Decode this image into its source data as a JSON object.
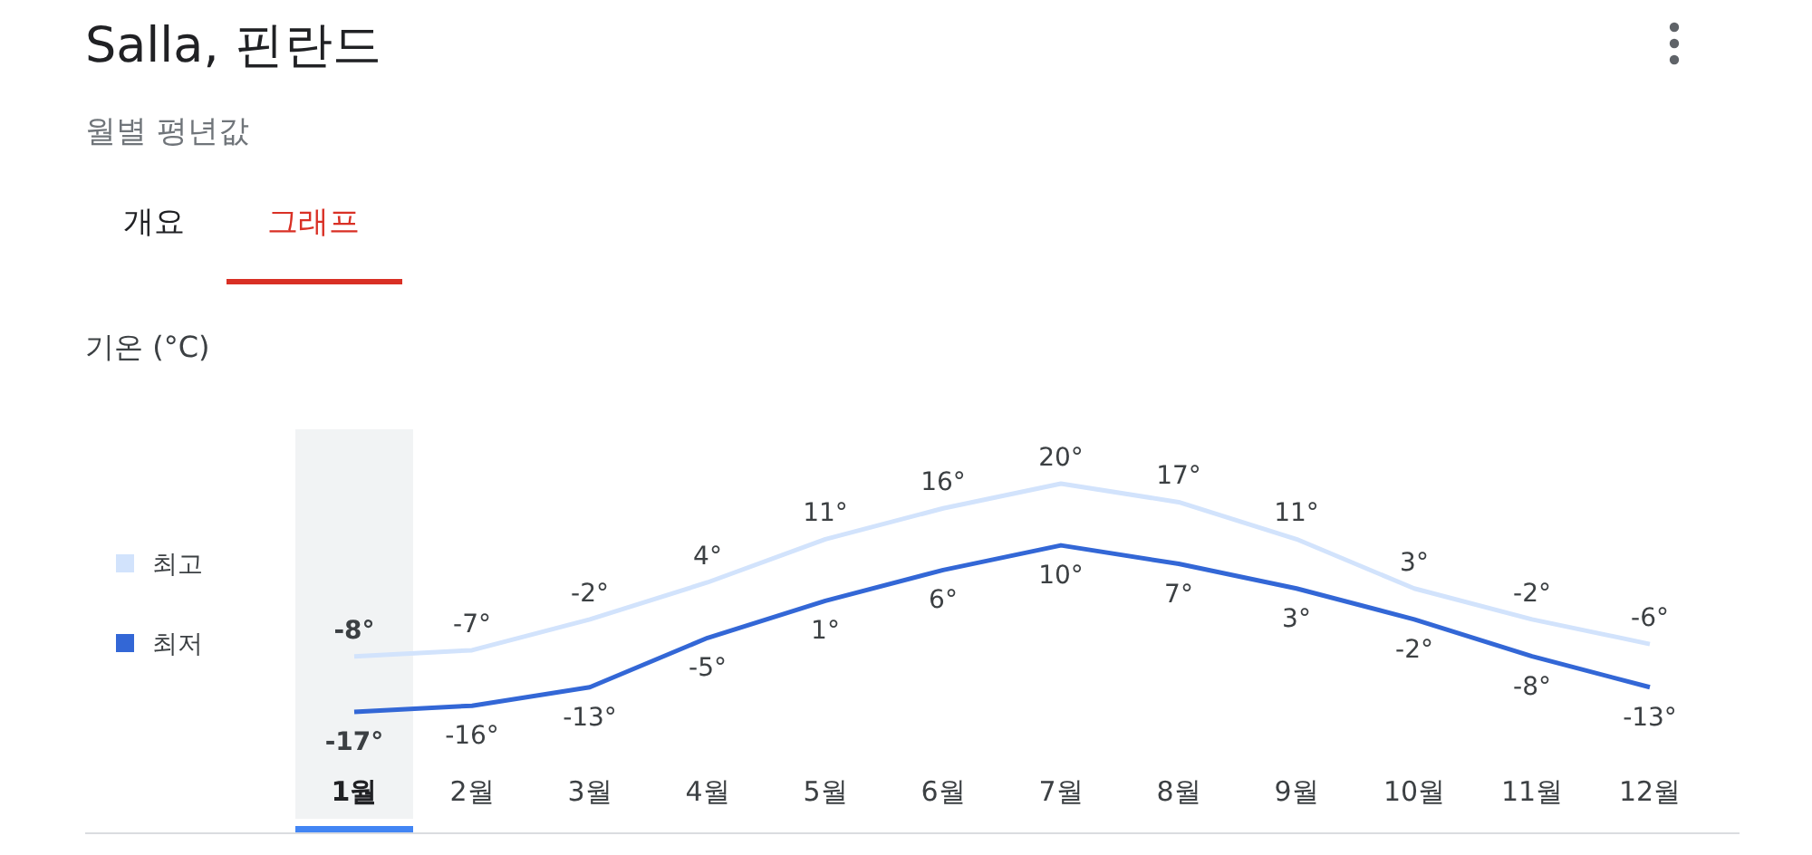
{
  "chart_data": {
    "type": "line",
    "title": "Salla, 핀란드",
    "subtitle": "월별 평년값",
    "annotations": [
      "개요",
      "그래프",
      "기온 (°C)"
    ],
    "categories": [
      "1월",
      "2월",
      "3월",
      "4월",
      "5월",
      "6월",
      "7월",
      "8월",
      "9월",
      "10월",
      "11월",
      "12월"
    ],
    "series": [
      {
        "name": "최고",
        "color": "#d2e3fc",
        "values": [
          -8,
          -7,
          -2,
          4,
          11,
          16,
          20,
          17,
          11,
          3,
          -2,
          -6
        ],
        "value_labels": [
          "-8°",
          "-7°",
          "-2°",
          "4°",
          "11°",
          "16°",
          "20°",
          "17°",
          "11°",
          "3°",
          "-2°",
          "-6°"
        ]
      },
      {
        "name": "최저",
        "color": "#3367d6",
        "values": [
          -17,
          -16,
          -13,
          -5,
          1,
          6,
          10,
          7,
          3,
          -2,
          -8,
          -13
        ],
        "value_labels": [
          "-17°",
          "-16°",
          "-13°",
          "-5°",
          "1°",
          "6°",
          "10°",
          "7°",
          "3°",
          "-2°",
          "-8°",
          "-13°"
        ]
      }
    ],
    "legend": "left",
    "grid": false,
    "marker": "none",
    "line_style": "solid"
  }
}
